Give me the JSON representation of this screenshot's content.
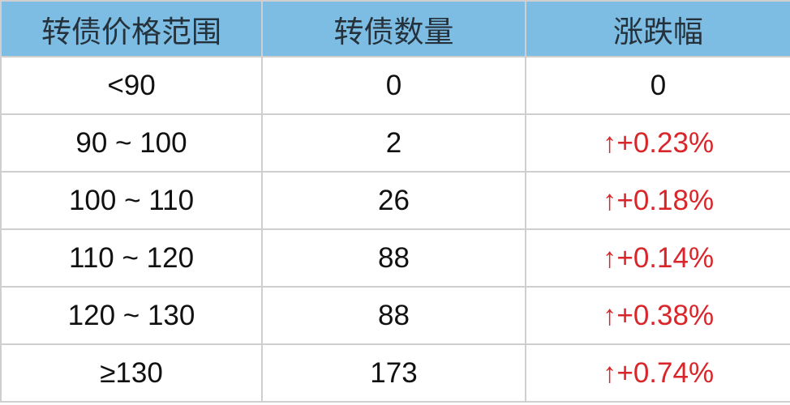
{
  "table": {
    "headers": [
      "转债价格范围",
      "转债数量",
      "涨跌幅"
    ],
    "rows": [
      {
        "range": "<90",
        "count": "0",
        "change": "0",
        "up": false
      },
      {
        "range": "90 ~ 100",
        "count": "2",
        "change": "↑+0.23%",
        "up": true
      },
      {
        "range": "100 ~ 110",
        "count": "26",
        "change": "↑+0.18%",
        "up": true
      },
      {
        "range": "110 ~ 120",
        "count": "88",
        "change": "↑+0.14%",
        "up": true
      },
      {
        "range": "120 ~ 130",
        "count": "88",
        "change": "↑+0.38%",
        "up": true
      },
      {
        "range": "≥130",
        "count": "173",
        "change": "↑+0.74%",
        "up": true
      }
    ]
  },
  "colors": {
    "header_bg": "#7dbde4",
    "up": "#d8262a"
  }
}
